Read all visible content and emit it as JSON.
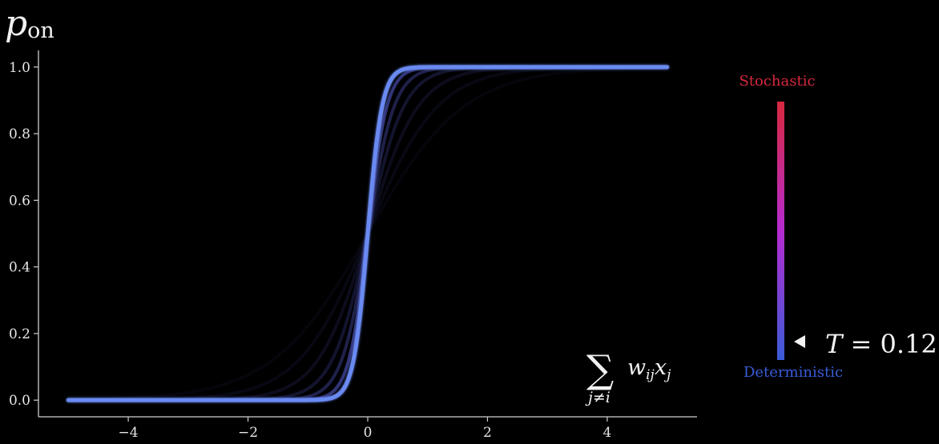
{
  "chart_data": {
    "type": "line",
    "title": "",
    "xlabel": "",
    "ylabel": "",
    "xlim": [
      -5.5,
      5.5
    ],
    "ylim": [
      -0.05,
      1.05
    ],
    "x_range": [
      -5,
      5
    ],
    "xticks": [
      -4,
      -2,
      0,
      2,
      4
    ],
    "xtick_labels": [
      "−4",
      "−2",
      "0",
      "2",
      "4"
    ],
    "yticks": [
      0.0,
      0.2,
      0.4,
      0.6,
      0.8,
      1.0
    ],
    "ytick_labels": [
      "0.0",
      "0.2",
      "0.4",
      "0.6",
      "0.8",
      "1.0"
    ],
    "grid": false,
    "function": "p_on = 1 / (1 + exp(-x / T))",
    "current_temperature": 0.12,
    "faded_temperatures": [
      0.16,
      0.22,
      0.3,
      0.42,
      0.58,
      0.8
    ],
    "colors": {
      "current_curve": "#6a8af2",
      "faded_curve": "#5a60d8",
      "axis": "#cfcfcf",
      "background": "#000000"
    }
  },
  "labels": {
    "y_symbol_main": "p",
    "y_symbol_sub": "on",
    "x_sum_symbol": "∑",
    "x_term": "w",
    "x_term_sub1": "ij",
    "x_term_x": "x",
    "x_term_sub2": "j",
    "x_sum_index": "j≠i"
  },
  "temperature_scale": {
    "top_label": "Stochastic",
    "bottom_label": "Deterministic",
    "top_color": "#d8283e",
    "mid_color": "#b52bd0",
    "bottom_color": "#3a5cd8",
    "value_prefix": "T = ",
    "value": "0.12",
    "min_T": 0.0,
    "max_T": 1.0,
    "pointer_icon": "triangle-left-icon"
  }
}
